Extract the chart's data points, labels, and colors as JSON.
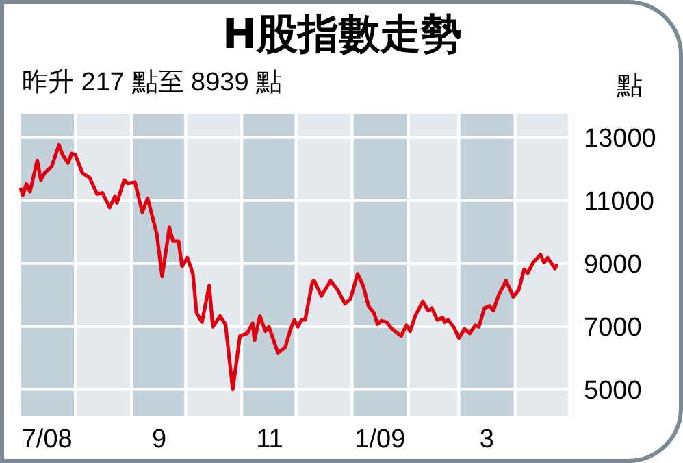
{
  "chart_data": {
    "type": "line",
    "title": "H股指數走勢",
    "subtitle": "昨升 217 點至 8939 點",
    "ylabel": "點",
    "x": [
      "2008-07-02",
      "2008-07-03",
      "2008-07-05",
      "2008-07-07",
      "2008-07-11",
      "2008-07-13",
      "2008-07-15",
      "2008-07-19",
      "2008-07-23",
      "2008-07-25",
      "2008-07-28",
      "2008-07-30",
      "2008-08-01",
      "2008-08-05",
      "2008-08-09",
      "2008-08-13",
      "2008-08-16",
      "2008-08-20",
      "2008-08-23",
      "2008-08-24",
      "2008-08-28",
      "2008-08-30",
      "2008-09-03",
      "2008-09-07",
      "2008-09-10",
      "2008-09-15",
      "2008-09-18",
      "2008-09-22",
      "2008-09-24",
      "2008-09-27",
      "2008-09-29",
      "2008-10-02",
      "2008-10-05",
      "2008-10-07",
      "2008-10-10",
      "2008-10-14",
      "2008-10-16",
      "2008-10-20",
      "2008-10-23",
      "2008-10-27",
      "2008-10-31",
      "2008-11-04",
      "2008-11-07",
      "2008-11-08",
      "2008-11-11",
      "2008-11-14",
      "2008-11-16",
      "2008-11-21",
      "2008-11-25",
      "2008-11-28",
      "2008-11-30",
      "2008-12-02",
      "2008-12-04",
      "2008-12-06",
      "2008-12-10",
      "2008-12-11",
      "2008-12-15",
      "2008-12-20",
      "2008-12-24",
      "2008-12-28",
      "2008-12-31",
      "2009-01-04",
      "2009-01-07",
      "2009-01-10",
      "2009-01-13",
      "2009-01-15",
      "2009-01-17",
      "2009-01-20",
      "2009-01-23",
      "2009-01-28",
      "2009-01-31",
      "2009-02-02",
      "2009-02-05",
      "2009-02-09",
      "2009-02-12",
      "2009-02-14",
      "2009-02-17",
      "2009-02-20",
      "2009-02-21",
      "2009-02-23",
      "2009-02-26",
      "2009-03-01",
      "2009-03-04",
      "2009-03-07",
      "2009-03-10",
      "2009-03-12",
      "2009-03-15",
      "2009-03-18",
      "2009-03-20",
      "2009-03-23",
      "2009-03-27",
      "2009-03-31",
      "2009-04-03",
      "2009-04-06",
      "2009-04-08",
      "2009-04-11",
      "2009-04-15",
      "2009-04-17",
      "2009-04-19",
      "2009-04-23",
      "2009-04-24"
    ],
    "series": [
      {
        "color": "#e0000f",
        "values": [
          11360,
          11170,
          11530,
          11280,
          12270,
          11650,
          11870,
          12080,
          12770,
          12450,
          12190,
          12490,
          12450,
          11870,
          11720,
          11210,
          11240,
          10780,
          11140,
          10920,
          11650,
          11550,
          11580,
          10630,
          11070,
          9950,
          8590,
          10150,
          9710,
          9710,
          8910,
          9180,
          8670,
          7430,
          7140,
          8300,
          6990,
          7330,
          7070,
          5000,
          6700,
          6780,
          7100,
          6560,
          7330,
          6850,
          6990,
          6160,
          6340,
          6920,
          7210,
          6990,
          7210,
          7210,
          8420,
          8450,
          7970,
          8450,
          8160,
          7720,
          7870,
          8670,
          8300,
          7650,
          7430,
          7070,
          7180,
          7140,
          6920,
          6700,
          7040,
          6850,
          7360,
          7790,
          7500,
          7580,
          7210,
          7280,
          7140,
          7210,
          6990,
          6630,
          6920,
          6780,
          7040,
          6990,
          7580,
          7650,
          7500,
          8010,
          8450,
          7940,
          8160,
          8810,
          8700,
          9030,
          9280,
          9030,
          9180,
          8840,
          8940
        ]
      }
    ],
    "xlim": [
      "2008-07-01",
      "2009-05-01"
    ],
    "xticks": [
      {
        "value": "2008-07-16",
        "label": "7/08"
      },
      {
        "value": "2008-09-16",
        "label": "9"
      },
      {
        "value": "2008-11-16",
        "label": "11"
      },
      {
        "value": "2009-01-16",
        "label": "1/09"
      },
      {
        "value": "2009-03-16",
        "label": "3"
      }
    ],
    "ylim": [
      4100,
      13800
    ],
    "yticks": [
      5000,
      7000,
      9000,
      11000,
      13000
    ],
    "grid": "y",
    "bands": [
      {
        "axis": "x",
        "from": "2008-07-01",
        "to": "2008-08-01",
        "color": "#c2d1d9"
      },
      {
        "axis": "x",
        "from": "2008-08-01",
        "to": "2008-09-01",
        "color": "#e3e9ed"
      },
      {
        "axis": "x",
        "from": "2008-09-01",
        "to": "2008-10-01",
        "color": "#c2d1d9"
      },
      {
        "axis": "x",
        "from": "2008-10-01",
        "to": "2008-11-01",
        "color": "#e3e9ed"
      },
      {
        "axis": "x",
        "from": "2008-11-01",
        "to": "2008-12-01",
        "color": "#c2d1d9"
      },
      {
        "axis": "x",
        "from": "2008-12-01",
        "to": "2009-01-01",
        "color": "#e3e9ed"
      },
      {
        "axis": "x",
        "from": "2009-01-01",
        "to": "2009-02-01",
        "color": "#c2d1d9"
      },
      {
        "axis": "x",
        "from": "2009-02-01",
        "to": "2009-03-01",
        "color": "#e3e9ed"
      },
      {
        "axis": "x",
        "from": "2009-03-01",
        "to": "2009-04-01",
        "color": "#c2d1d9"
      },
      {
        "axis": "x",
        "from": "2009-04-01",
        "to": "2009-05-01",
        "color": "#e3e9ed"
      }
    ]
  }
}
